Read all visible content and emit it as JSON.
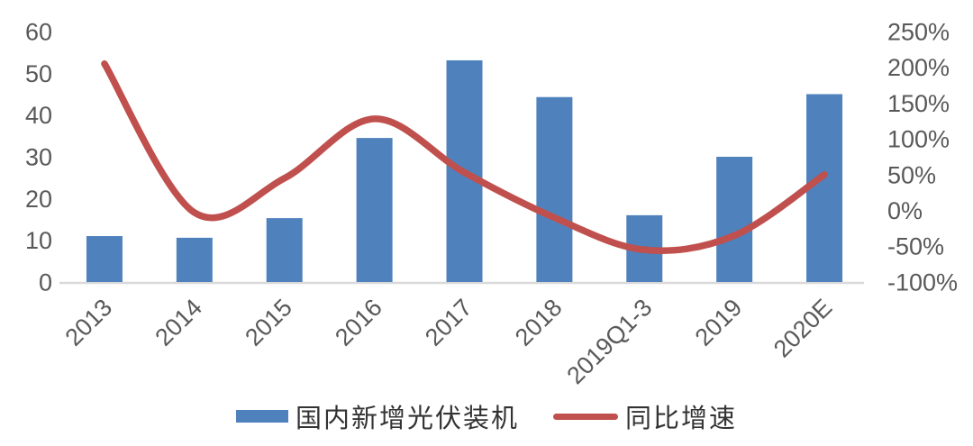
{
  "chart_data": {
    "type": "bar",
    "subtype": "bar-line-combo",
    "title": "",
    "categories": [
      "2013",
      "2014",
      "2015",
      "2016",
      "2017",
      "2018",
      "2019Q1-3",
      "2019",
      "2020E"
    ],
    "series": [
      {
        "name": "国内新增光伏装机",
        "type": "bar",
        "axis": "left",
        "color": "#4F81BD",
        "values": [
          11,
          10.6,
          15.3,
          34.5,
          53.1,
          44.3,
          16,
          30,
          45
        ]
      },
      {
        "name": "同比增速",
        "type": "line",
        "axis": "right",
        "color": "#C0504D",
        "unit": "%",
        "values": [
          205,
          -3,
          45,
          128,
          53,
          -10,
          -55,
          -35,
          50
        ]
      }
    ],
    "left_axis": {
      "min": 0,
      "max": 60,
      "step": 10,
      "tick_labels": [
        "0",
        "10",
        "20",
        "30",
        "40",
        "50",
        "60"
      ]
    },
    "right_axis": {
      "min": -100,
      "max": 250,
      "step": 50,
      "tick_labels": [
        "-100%",
        "-50%",
        "0%",
        "50%",
        "100%",
        "150%",
        "200%",
        "250%"
      ]
    },
    "grid": false,
    "legend_position": "bottom",
    "x_label_rotation": -45
  },
  "colors": {
    "axis_text": "#595959",
    "axis_line": "#d9d9d9",
    "bar_fill": "#4F81BD",
    "line_stroke": "#C0504D",
    "background": "#ffffff"
  }
}
